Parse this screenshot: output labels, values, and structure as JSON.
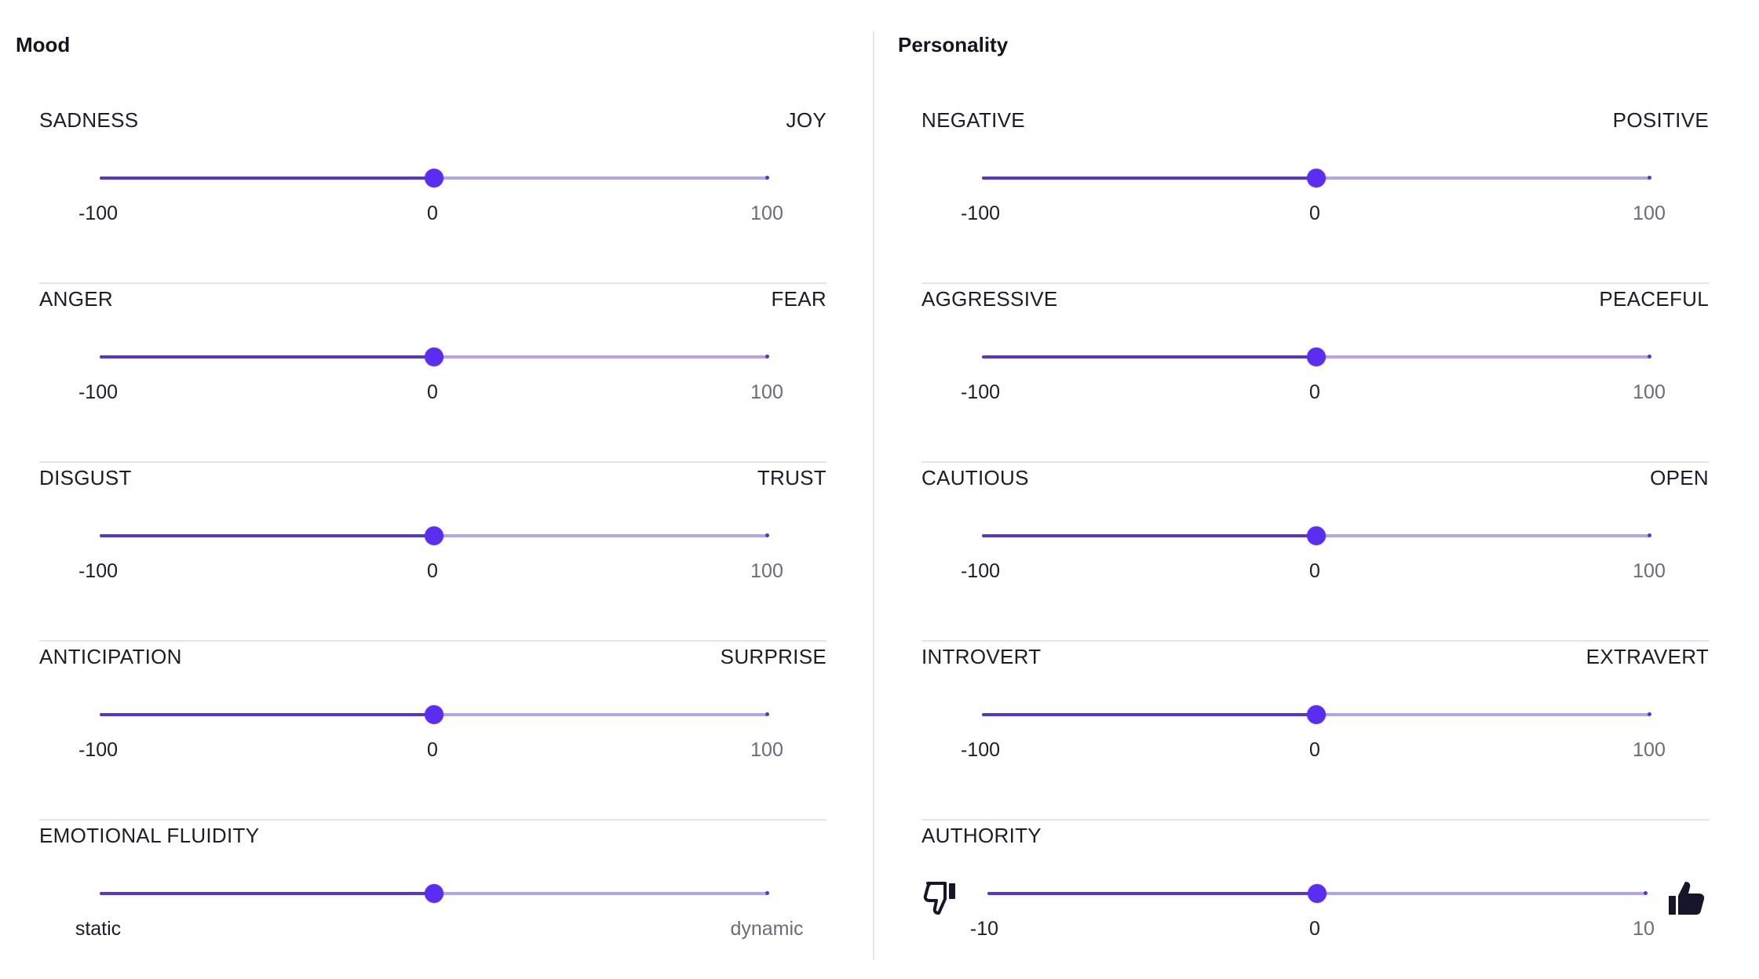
{
  "mood": {
    "title": "Mood",
    "sliders": [
      {
        "left": "SADNESS",
        "right": "JOY",
        "min": "-100",
        "mid": "0",
        "max": "100",
        "value": 0
      },
      {
        "left": "ANGER",
        "right": "FEAR",
        "min": "-100",
        "mid": "0",
        "max": "100",
        "value": 0
      },
      {
        "left": "DISGUST",
        "right": "TRUST",
        "min": "-100",
        "mid": "0",
        "max": "100",
        "value": 0
      },
      {
        "left": "ANTICIPATION",
        "right": "SURPRISE",
        "min": "-100",
        "mid": "0",
        "max": "100",
        "value": 0
      },
      {
        "left": "EMOTIONAL FLUIDITY",
        "right": "",
        "min": "static",
        "mid": "",
        "max": "dynamic",
        "value": 0
      }
    ]
  },
  "personality": {
    "title": "Personality",
    "sliders": [
      {
        "left": "NEGATIVE",
        "right": "POSITIVE",
        "min": "-100",
        "mid": "0",
        "max": "100",
        "value": 0
      },
      {
        "left": "AGGRESSIVE",
        "right": "PEACEFUL",
        "min": "-100",
        "mid": "0",
        "max": "100",
        "value": 0
      },
      {
        "left": "CAUTIOUS",
        "right": "OPEN",
        "min": "-100",
        "mid": "0",
        "max": "100",
        "value": 0
      },
      {
        "left": "INTROVERT",
        "right": "EXTRAVERT",
        "min": "-100",
        "mid": "0",
        "max": "100",
        "value": 0
      },
      {
        "left": "AUTHORITY",
        "right": "",
        "min": "-10",
        "mid": "0",
        "max": "10",
        "value": 0
      }
    ]
  },
  "icons": {
    "authority_low": "thumbs-down-icon",
    "authority_high": "thumbs-up-icon"
  },
  "colors": {
    "accent": "#5a2df0",
    "track_filled": "#5535d6",
    "track_empty": "#b3a3f0"
  }
}
